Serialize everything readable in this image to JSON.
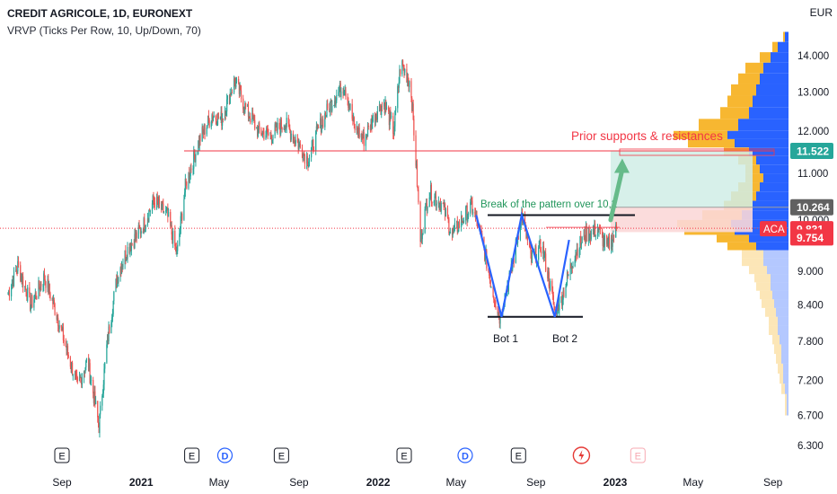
{
  "header": {
    "title": "CREDIT AGRICOLE, 1D, EURONEXT",
    "indicator": "VRVP (Ticks Per Row, 10, Up/Down, 70)",
    "currency": "EUR"
  },
  "colors": {
    "up": "#26a69a",
    "down": "#ef5350",
    "price_line": "#f23645",
    "annotation_red": "#f23645",
    "annotation_green": "#21965b",
    "pattern_line": "#2962ff",
    "vp_up": "#2962ff",
    "vp_down": "#f7b731",
    "target_zone": "#d0ede6",
    "stop_zone": "#fbd8d8"
  },
  "chart_data": {
    "type": "candlestick",
    "symbol": "ACA",
    "timeframe": "1D",
    "price_axis": {
      "scale": "log",
      "ticks": [
        "14.000",
        "13.000",
        "12.000",
        "11.000",
        "10.000",
        "9.000",
        "8.400",
        "7.800",
        "7.200",
        "6.700",
        "6.300"
      ],
      "tick_values": [
        14.0,
        13.0,
        12.0,
        11.0,
        10.0,
        9.0,
        8.4,
        7.8,
        7.2,
        6.7,
        6.3
      ],
      "range": [
        6.3,
        14.6
      ]
    },
    "time_axis": {
      "ticks": [
        "Sep",
        "2021",
        "May",
        "Sep",
        "2022",
        "May",
        "Sep",
        "2023",
        "May",
        "Sep"
      ],
      "tick_dates": [
        "2020-09-01",
        "2021-01-01",
        "2021-05-01",
        "2021-09-01",
        "2022-01-01",
        "2022-05-01",
        "2022-09-01",
        "2023-01-01",
        "2023-05-01",
        "2023-09-01"
      ],
      "bold": [
        "2021",
        "2022",
        "2023"
      ]
    },
    "price_path": [
      [
        "2020-06-10",
        8.6
      ],
      [
        "2020-06-25",
        9.1
      ],
      [
        "2020-07-15",
        8.4
      ],
      [
        "2020-08-05",
        8.9
      ],
      [
        "2020-08-25",
        8.2
      ],
      [
        "2020-09-10",
        7.6
      ],
      [
        "2020-09-25",
        7.1
      ],
      [
        "2020-10-10",
        7.5
      ],
      [
        "2020-10-28",
        6.55
      ],
      [
        "2020-11-10",
        7.8
      ],
      [
        "2020-11-25",
        8.9
      ],
      [
        "2020-12-10",
        9.4
      ],
      [
        "2021-01-05",
        9.9
      ],
      [
        "2021-01-20",
        10.4
      ],
      [
        "2021-02-10",
        10.1
      ],
      [
        "2021-02-25",
        9.3
      ],
      [
        "2021-03-10",
        10.7
      ],
      [
        "2021-04-01",
        11.8
      ],
      [
        "2021-04-20",
        12.4
      ],
      [
        "2021-05-05",
        12.3
      ],
      [
        "2021-05-25",
        13.3
      ],
      [
        "2021-06-10",
        12.6
      ],
      [
        "2021-06-30",
        12.0
      ],
      [
        "2021-07-20",
        11.9
      ],
      [
        "2021-08-10",
        12.2
      ],
      [
        "2021-08-30",
        11.7
      ],
      [
        "2021-09-15",
        11.3
      ],
      [
        "2021-09-30",
        12.0
      ],
      [
        "2021-10-20",
        12.7
      ],
      [
        "2021-11-10",
        13.2
      ],
      [
        "2021-11-25",
        12.1
      ],
      [
        "2021-12-10",
        11.8
      ],
      [
        "2021-12-30",
        12.5
      ],
      [
        "2022-01-10",
        12.7
      ],
      [
        "2022-01-25",
        12.0
      ],
      [
        "2022-02-05",
        13.8
      ],
      [
        "2022-02-20",
        13.2
      ],
      [
        "2022-03-07",
        9.6
      ],
      [
        "2022-03-20",
        10.6
      ],
      [
        "2022-04-10",
        10.3
      ],
      [
        "2022-04-25",
        9.7
      ],
      [
        "2022-05-10",
        10.0
      ],
      [
        "2022-05-25",
        10.3
      ],
      [
        "2022-06-10",
        9.6
      ],
      [
        "2022-06-25",
        8.7
      ],
      [
        "2022-07-07",
        8.2
      ],
      [
        "2022-07-25",
        9.0
      ],
      [
        "2022-08-10",
        10.1
      ],
      [
        "2022-08-25",
        9.2
      ],
      [
        "2022-09-10",
        9.5
      ],
      [
        "2022-09-30",
        8.3
      ],
      [
        "2022-10-10",
        8.5
      ],
      [
        "2022-10-30",
        9.3
      ],
      [
        "2022-11-15",
        9.7
      ],
      [
        "2022-12-05",
        9.8
      ],
      [
        "2022-12-20",
        9.45
      ],
      [
        "2023-01-03",
        9.8
      ]
    ],
    "vrvp": {
      "price_levels": [
        14.4,
        14.1,
        13.8,
        13.5,
        13.2,
        12.9,
        12.6,
        12.3,
        12.0,
        11.8,
        11.6,
        11.4,
        11.2,
        11.0,
        10.8,
        10.6,
        10.4,
        10.2,
        10.0,
        9.85,
        9.7,
        9.55,
        9.4,
        9.25,
        9.1,
        8.95,
        8.8,
        8.65,
        8.5,
        8.35,
        8.2,
        8.05,
        7.9,
        7.75,
        7.6,
        7.45,
        7.3,
        7.15,
        7.0,
        6.85,
        6.7
      ],
      "up": [
        2,
        6,
        10,
        14,
        16,
        18,
        20,
        22,
        28,
        34,
        30,
        22,
        18,
        16,
        14,
        16,
        18,
        20,
        26,
        32,
        30,
        22,
        18,
        14,
        14,
        12,
        10,
        10,
        9,
        8,
        7,
        6,
        6,
        5,
        4,
        4,
        3,
        3,
        2,
        1,
        1
      ],
      "down": [
        1,
        3,
        6,
        10,
        12,
        14,
        14,
        16,
        22,
        30,
        26,
        14,
        10,
        8,
        10,
        12,
        14,
        16,
        22,
        30,
        28,
        18,
        16,
        12,
        12,
        10,
        9,
        8,
        7,
        7,
        6,
        5,
        5,
        4,
        4,
        3,
        3,
        2,
        2,
        1,
        1
      ]
    },
    "levels": {
      "resistance": 11.52,
      "neckline": 10.1,
      "right_neckline": 9.85,
      "bottom_line": 8.2,
      "target_top": 11.52,
      "entry": 10.264,
      "stop": 9.754
    },
    "pattern_points": [
      [
        "2022-06-01",
        10.1
      ],
      [
        "2022-07-10",
        8.2
      ],
      [
        "2022-08-10",
        10.1
      ],
      [
        "2022-09-30",
        8.2
      ],
      [
        "2022-10-22",
        9.6
      ]
    ],
    "projection_arrow": [
      [
        "2022-12-25",
        10.0
      ],
      [
        "2023-01-12",
        11.3
      ]
    ],
    "price_labels": {
      "resistance": "11.522",
      "entry": "10.264",
      "last": "9.831",
      "stop": "9.754",
      "symbol": "ACA"
    },
    "annotations": {
      "resistance_note": "Prior supports & resistances",
      "break_note": "Break of the pattern over 10,2",
      "bottom1": "Bot 1",
      "bottom2": "Bot 2"
    },
    "events": [
      {
        "date": "2020-09-01",
        "kind": "E"
      },
      {
        "date": "2021-03-20",
        "kind": "E"
      },
      {
        "date": "2021-05-10",
        "kind": "D"
      },
      {
        "date": "2021-08-05",
        "kind": "E"
      },
      {
        "date": "2022-02-10",
        "kind": "E"
      },
      {
        "date": "2022-05-15",
        "kind": "D"
      },
      {
        "date": "2022-08-05",
        "kind": "E"
      },
      {
        "date": "2022-11-10",
        "kind": "split"
      },
      {
        "date": "2023-02-05",
        "kind": "E",
        "faded": true
      }
    ]
  }
}
